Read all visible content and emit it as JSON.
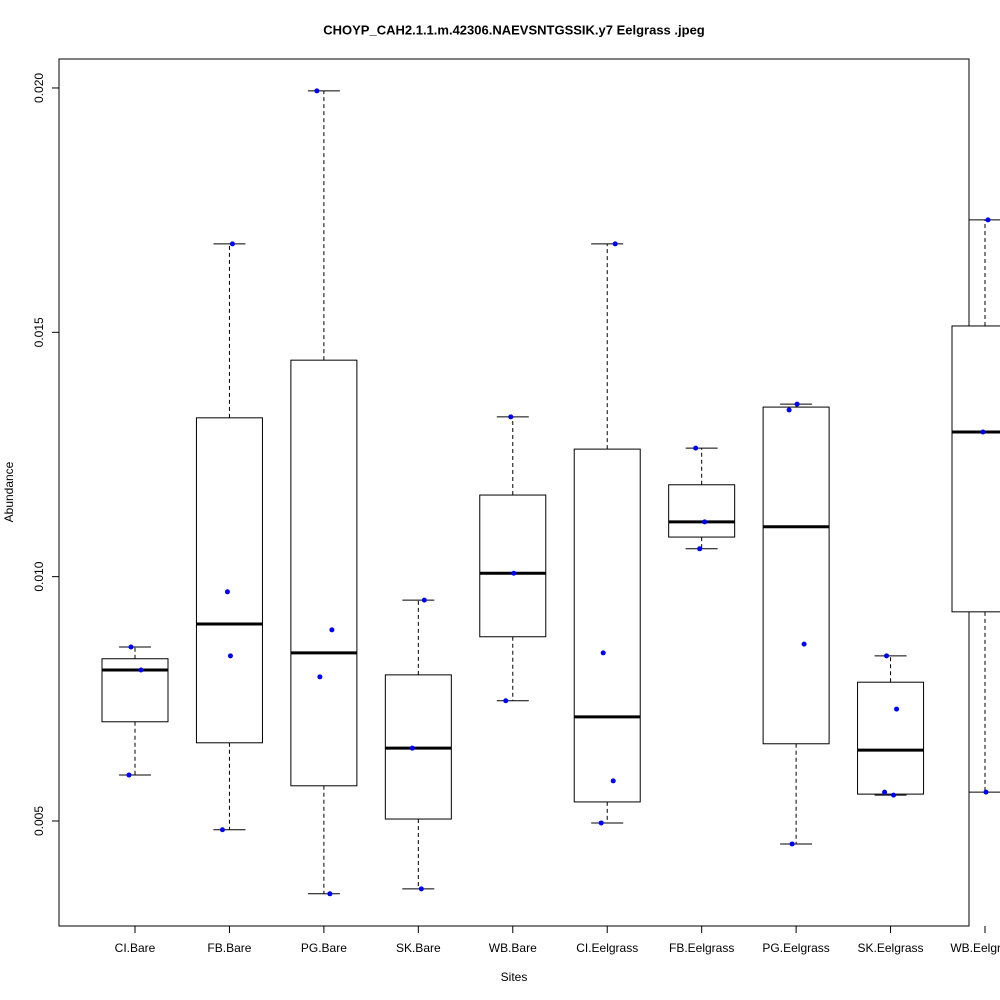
{
  "chart_data": {
    "type": "box",
    "title": "CHOYP_CAH2.1.1.m.42306.NAEVSNTGSSIK.y7 Eelgrass .jpeg",
    "x_label": "Sites",
    "y_label": "Abundance",
    "categories": [
      "CI.Bare",
      "FB.Bare",
      "PG.Bare",
      "SK.Bare",
      "WB.Bare",
      "CI.Eelgrass",
      "FB.Eelgrass",
      "PG.Eelgrass",
      "SK.Eelgrass",
      "WB.Eelgrass"
    ],
    "boxes": [
      {
        "low": 0.00594,
        "q1": 0.00703,
        "median": 0.00809,
        "q3": 0.00832,
        "high": 0.00856,
        "points": [
          0.00856,
          0.00809,
          0.00594
        ]
      },
      {
        "low": 0.00482,
        "q1": 0.0066,
        "median": 0.00903,
        "q3": 0.01325,
        "high": 0.01681,
        "points": [
          0.01681,
          0.00969,
          0.00838,
          0.00482
        ]
      },
      {
        "low": 0.00351,
        "q1": 0.00572,
        "median": 0.00844,
        "q3": 0.01443,
        "high": 0.01994,
        "points": [
          0.01994,
          0.00891,
          0.00795,
          0.00351
        ]
      },
      {
        "low": 0.00361,
        "q1": 0.00504,
        "median": 0.00649,
        "q3": 0.00799,
        "high": 0.00952,
        "points": [
          0.00952,
          0.00649,
          0.00361
        ]
      },
      {
        "low": 0.00746,
        "q1": 0.00877,
        "median": 0.01007,
        "q3": 0.01167,
        "high": 0.01327,
        "points": [
          0.01327,
          0.01007,
          0.00746
        ]
      },
      {
        "low": 0.00496,
        "q1": 0.00539,
        "median": 0.00713,
        "q3": 0.01261,
        "high": 0.01681,
        "points": [
          0.01681,
          0.00844,
          0.00582,
          0.00496
        ]
      },
      {
        "low": 0.01057,
        "q1": 0.01081,
        "median": 0.01112,
        "q3": 0.01188,
        "high": 0.01263,
        "points": [
          0.01263,
          0.01112,
          0.01057
        ]
      },
      {
        "low": 0.00453,
        "q1": 0.00658,
        "median": 0.01102,
        "q3": 0.01347,
        "high": 0.01353,
        "points": [
          0.01353,
          0.01341,
          0.00862,
          0.00453
        ]
      },
      {
        "low": 0.00553,
        "q1": 0.00555,
        "median": 0.00645,
        "q3": 0.00784,
        "high": 0.00838,
        "points": [
          0.00838,
          0.00729,
          0.00559,
          0.00553
        ]
      },
      {
        "low": 0.00559,
        "q1": 0.00928,
        "median": 0.01296,
        "q3": 0.01513,
        "high": 0.0173,
        "points": [
          0.0173,
          0.01296,
          0.00559
        ]
      }
    ],
    "point_color": "#0000ff",
    "ylim": [
      0.002851,
      0.020593
    ],
    "yticks": [
      0.005,
      {
        "value": 0.01,
        "label": "0.010"
      },
      0.015,
      {
        "value": 0.02,
        "label": "0.020"
      }
    ]
  }
}
